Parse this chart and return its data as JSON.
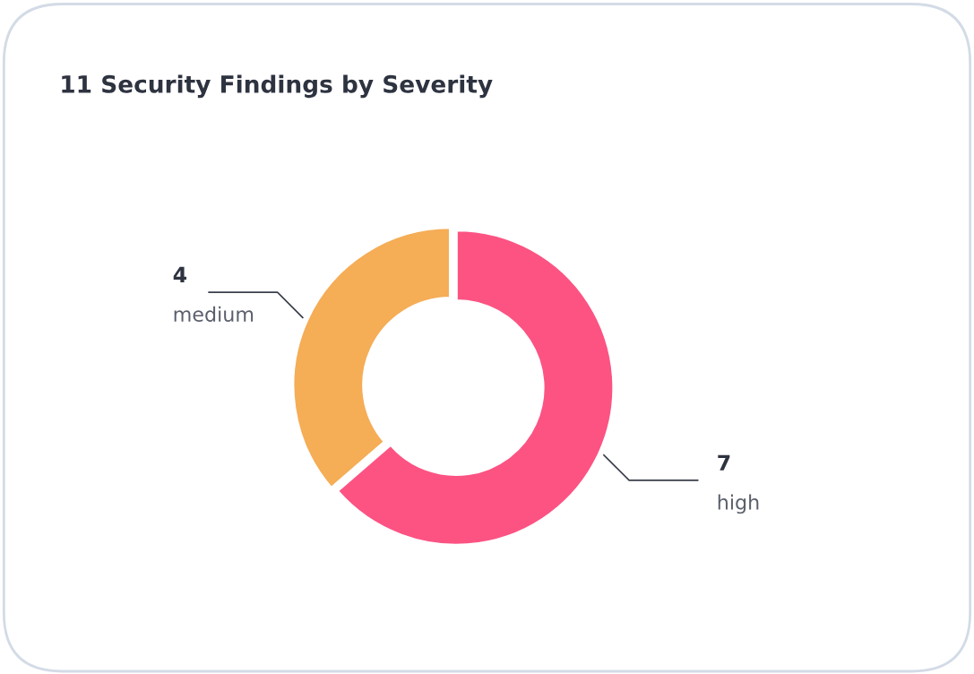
{
  "chart_data": {
    "type": "donut",
    "title": "11 Security Findings by Severity",
    "categories": [
      "high",
      "medium"
    ],
    "values": [
      7,
      4
    ],
    "colors": [
      "#fc5383",
      "#f5ad56"
    ],
    "data_labels": true,
    "legend": false
  }
}
